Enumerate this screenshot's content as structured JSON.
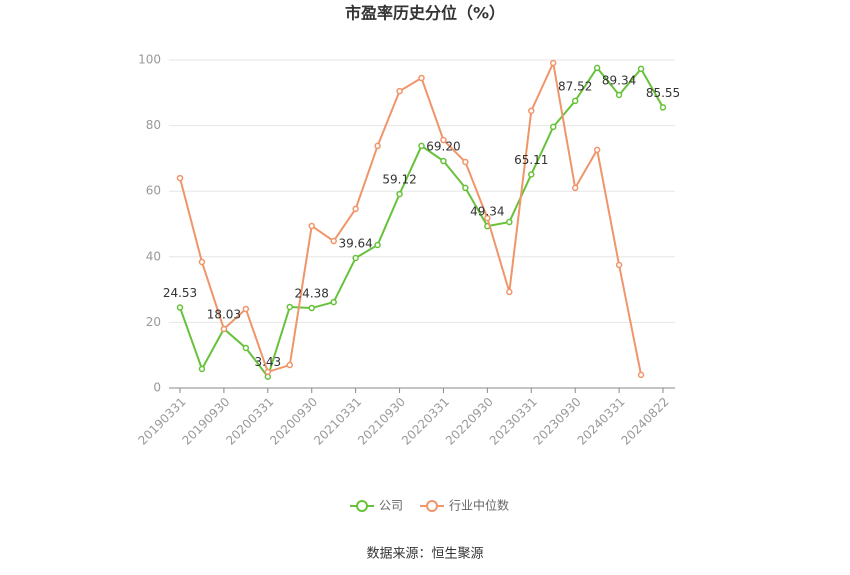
{
  "chart_data": {
    "type": "line",
    "title": "市盈率历史分位（%）",
    "source": "数据来源：恒生聚源",
    "categories": [
      "20190331",
      null,
      "20190930",
      null,
      "20200331",
      null,
      "20200930",
      null,
      "20210331",
      null,
      "20210930",
      null,
      "20220331",
      null,
      "20220930",
      null,
      "20230331",
      null,
      "20230930",
      null,
      "20240331",
      null,
      "20240822"
    ],
    "series": [
      {
        "name": "公司",
        "color": "#67c23a",
        "values": [
          24.53,
          5.8,
          18.03,
          12.2,
          3.43,
          24.7,
          24.38,
          26.2,
          39.64,
          43.6,
          59.12,
          73.8,
          69.2,
          61,
          49.34,
          50.6,
          65.11,
          79.6,
          87.52,
          97.6,
          89.34,
          97.3,
          85.55
        ],
        "value_labels": [
          "24.53",
          null,
          "18.03",
          null,
          "3.43",
          null,
          "24.38",
          null,
          "39.64",
          null,
          "59.12",
          null,
          "69.20",
          null,
          "49.34",
          null,
          "65.11",
          null,
          "87.52",
          null,
          "89.34",
          null,
          "85.55"
        ]
      },
      {
        "name": "行业中位数",
        "color": "#f0956a",
        "values": [
          64,
          38.4,
          18,
          24.1,
          4.9,
          7,
          49.4,
          44.8,
          54.6,
          73.8,
          90.5,
          94.5,
          75.6,
          68.9,
          51.8,
          29.3,
          84.5,
          99.1,
          61,
          72.6,
          37.5,
          4,
          null
        ]
      }
    ],
    "ylim": [
      0,
      100
    ],
    "yticks": [
      0,
      20,
      40,
      60,
      80,
      100
    ],
    "grid": true
  }
}
